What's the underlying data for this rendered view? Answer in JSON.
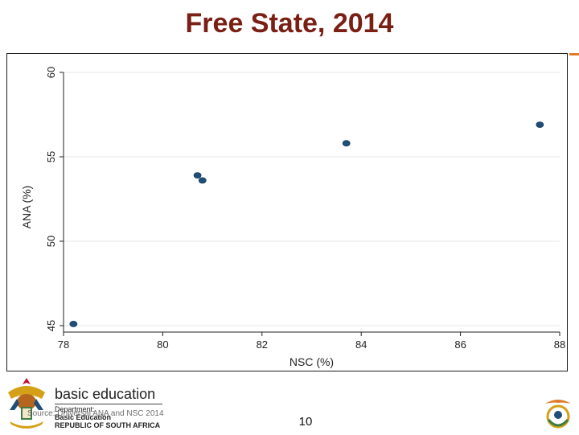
{
  "slide": {
    "title": "Free State, 2014",
    "page_number": "10",
    "source_note": "Source: Universal ANA and NSC 2014"
  },
  "branding": {
    "name": "basic education",
    "department_line1": "Department:",
    "department_line2": "Basic Education",
    "department_line3": "REPUBLIC OF SOUTH AFRICA"
  },
  "colors": {
    "title": "#7a1f14",
    "marker": "#1f4e79",
    "accent_orange": "#e07b2a",
    "gridline": "#e6e6e6",
    "axis": "#222222"
  },
  "icons": {
    "crest": "coat-of-arms-icon",
    "corner": "anniversary-logo-icon"
  },
  "chart_data": {
    "type": "scatter",
    "title": "",
    "xlabel": "NSC (%)",
    "ylabel": "ANA (%)",
    "xlim": [
      78,
      88
    ],
    "ylim": [
      45,
      60
    ],
    "x_ticks": [
      78,
      80,
      82,
      84,
      86,
      88
    ],
    "y_ticks": [
      45,
      50,
      55,
      60
    ],
    "grid": "horizontal",
    "legend": "none",
    "points": [
      {
        "x": 78.2,
        "y": 45.1
      },
      {
        "x": 80.7,
        "y": 53.9
      },
      {
        "x": 80.8,
        "y": 53.6
      },
      {
        "x": 83.7,
        "y": 55.8
      },
      {
        "x": 87.6,
        "y": 56.9
      }
    ]
  }
}
